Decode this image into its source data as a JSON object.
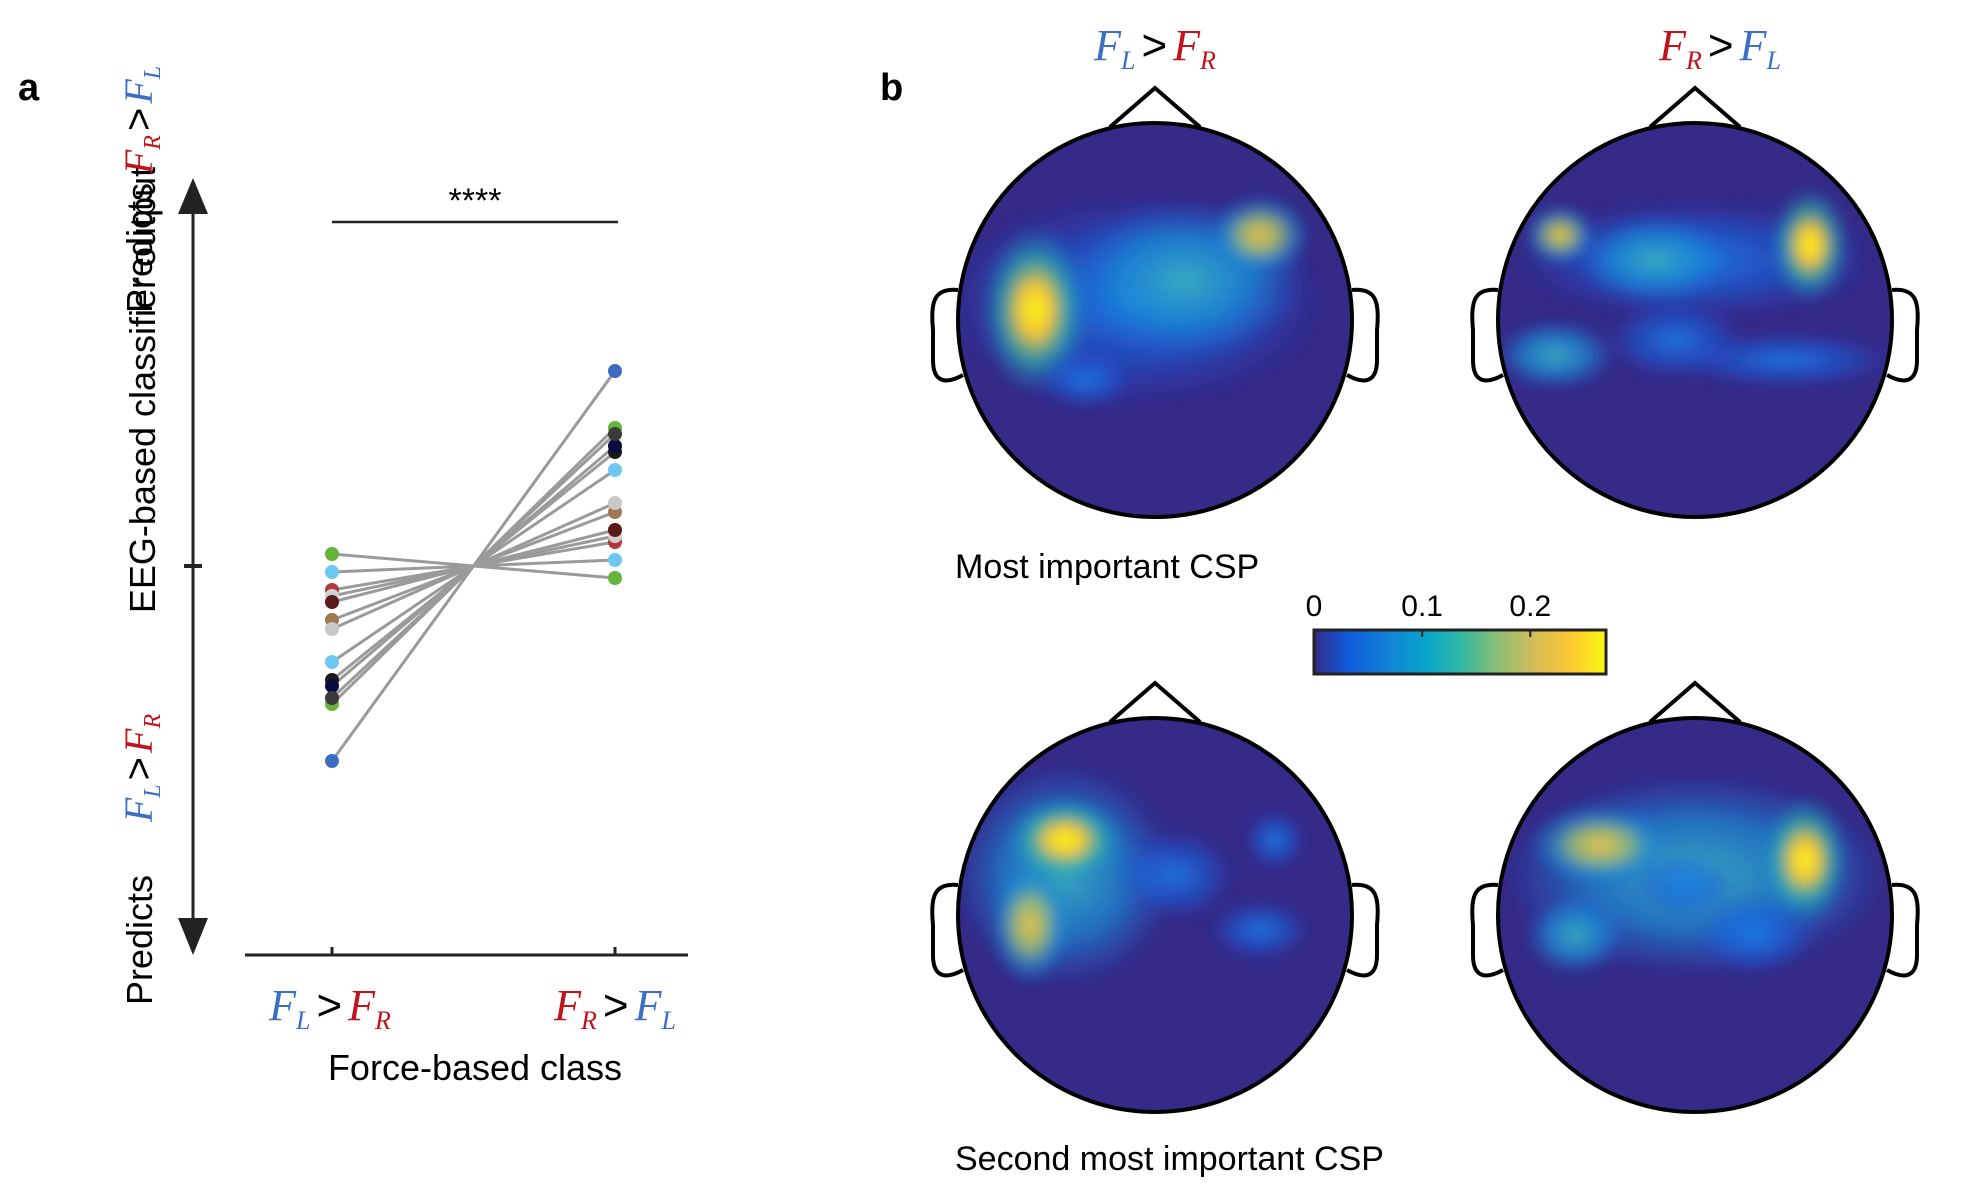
{
  "panel_a": {
    "letter": "a",
    "y_axis_label": "EEG-based classifier output",
    "predicts_label": "Predicts",
    "x_axis_label": "Force-based class",
    "significance": "****",
    "class_left": {
      "first": "F",
      "first_sub": "L",
      "op": ">",
      "second": "F",
      "second_sub": "R"
    },
    "class_right": {
      "first": "F",
      "first_sub": "R",
      "op": ">",
      "second": "F",
      "second_sub": "L"
    },
    "colors": {
      "left_force": "#3a6fc4",
      "right_force": "#c0141c",
      "line": "#9a9a9a"
    }
  },
  "panel_b": {
    "letter": "b",
    "col_left_title": {
      "first": "F",
      "first_sub": "L",
      "op": ">",
      "second": "F",
      "second_sub": "R"
    },
    "col_right_title": {
      "first": "F",
      "first_sub": "R",
      "op": ">",
      "second": "F",
      "second_sub": "L"
    },
    "row1_label": "Most important CSP",
    "row2_label": "Second most important CSP",
    "colorbar": {
      "ticks": [
        0,
        0.1,
        0.2
      ],
      "tick_labels": [
        "0",
        "0.1",
        "0.2"
      ],
      "min": 0,
      "max": 0.27,
      "colormap": "parula"
    }
  },
  "chart_data": {
    "type": "scatter",
    "categories": [
      "F_L > F_R",
      "F_R > F_L"
    ],
    "xlabel": "Force-based class",
    "ylabel": "EEG-based classifier output",
    "ylim": [
      -1,
      1
    ],
    "pairs": [
      {
        "left": -0.65,
        "right": 0.65,
        "color": "#3b6cc0"
      },
      {
        "left": 0.04,
        "right": -0.04,
        "color": "#66b33a"
      },
      {
        "left": -0.46,
        "right": 0.46,
        "color": "#66b33a"
      },
      {
        "left": -0.02,
        "right": 0.02,
        "color": "#6cc8f0"
      },
      {
        "left": -0.32,
        "right": 0.32,
        "color": "#6cc8f0"
      },
      {
        "left": -0.08,
        "right": 0.08,
        "color": "#b23a3a"
      },
      {
        "left": -0.1,
        "right": 0.1,
        "color": "#d0d0d0"
      },
      {
        "left": -0.12,
        "right": 0.12,
        "color": "#5a1a1a"
      },
      {
        "left": -0.18,
        "right": 0.18,
        "color": "#a07850"
      },
      {
        "left": -0.21,
        "right": 0.21,
        "color": "#c8c8c8"
      },
      {
        "left": -0.38,
        "right": 0.38,
        "color": "#1a1a1a"
      },
      {
        "left": -0.4,
        "right": 0.4,
        "color": "#0a0a40"
      },
      {
        "left": -0.44,
        "right": 0.44,
        "color": "#3a3a3a"
      }
    ]
  }
}
